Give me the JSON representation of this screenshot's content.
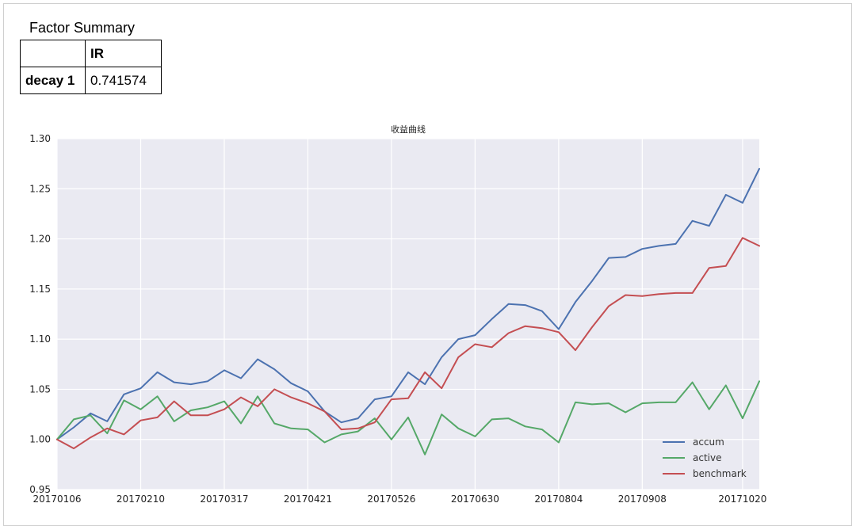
{
  "table": {
    "caption": "Factor Summary",
    "header": [
      "",
      "IR"
    ],
    "rows": [
      {
        "label": "decay 1",
        "value": "0.741574"
      }
    ]
  },
  "chart_data": {
    "type": "line",
    "title": "收益曲线",
    "xlabel": "",
    "ylabel": "",
    "ylim": [
      0.95,
      1.3
    ],
    "yticks": [
      "0.95",
      "1.00",
      "1.05",
      "1.10",
      "1.15",
      "1.20",
      "1.25",
      "1.30"
    ],
    "xtick_labels": [
      "20170106",
      "20170210",
      "20170317",
      "20170421",
      "20170526",
      "20170630",
      "20170804",
      "20170908",
      "20171020"
    ],
    "xtick_indices": [
      0,
      5,
      10,
      15,
      20,
      25,
      30,
      35,
      41
    ],
    "grid": true,
    "legend_position": "lower-right",
    "series": [
      {
        "name": "accum",
        "color": "#4c72b0",
        "values": [
          1.0,
          1.012,
          1.026,
          1.018,
          1.045,
          1.051,
          1.067,
          1.057,
          1.055,
          1.058,
          1.069,
          1.061,
          1.08,
          1.07,
          1.056,
          1.048,
          1.028,
          1.017,
          1.021,
          1.04,
          1.043,
          1.067,
          1.055,
          1.082,
          1.1,
          1.104,
          1.12,
          1.135,
          1.134,
          1.128,
          1.11,
          1.137,
          1.158,
          1.181,
          1.182,
          1.19,
          1.193,
          1.195,
          1.218,
          1.213,
          1.244,
          1.236,
          1.27
        ]
      },
      {
        "name": "active",
        "color": "#55a868",
        "values": [
          1.0,
          1.02,
          1.024,
          1.006,
          1.039,
          1.03,
          1.043,
          1.018,
          1.029,
          1.032,
          1.038,
          1.016,
          1.043,
          1.016,
          1.011,
          1.01,
          0.997,
          1.005,
          1.008,
          1.021,
          1.0,
          1.022,
          0.985,
          1.025,
          1.011,
          1.003,
          1.02,
          1.021,
          1.013,
          1.01,
          0.997,
          1.037,
          1.035,
          1.036,
          1.027,
          1.036,
          1.037,
          1.037,
          1.057,
          1.03,
          1.054,
          1.021,
          1.058
        ]
      },
      {
        "name": "benchmark",
        "color": "#c44e52",
        "values": [
          1.0,
          0.991,
          1.002,
          1.011,
          1.005,
          1.019,
          1.022,
          1.038,
          1.024,
          1.024,
          1.03,
          1.042,
          1.033,
          1.05,
          1.042,
          1.036,
          1.028,
          1.01,
          1.011,
          1.017,
          1.04,
          1.041,
          1.067,
          1.051,
          1.082,
          1.095,
          1.092,
          1.106,
          1.113,
          1.111,
          1.107,
          1.089,
          1.112,
          1.133,
          1.144,
          1.143,
          1.145,
          1.146,
          1.146,
          1.171,
          1.173,
          1.201,
          1.193
        ]
      }
    ]
  }
}
